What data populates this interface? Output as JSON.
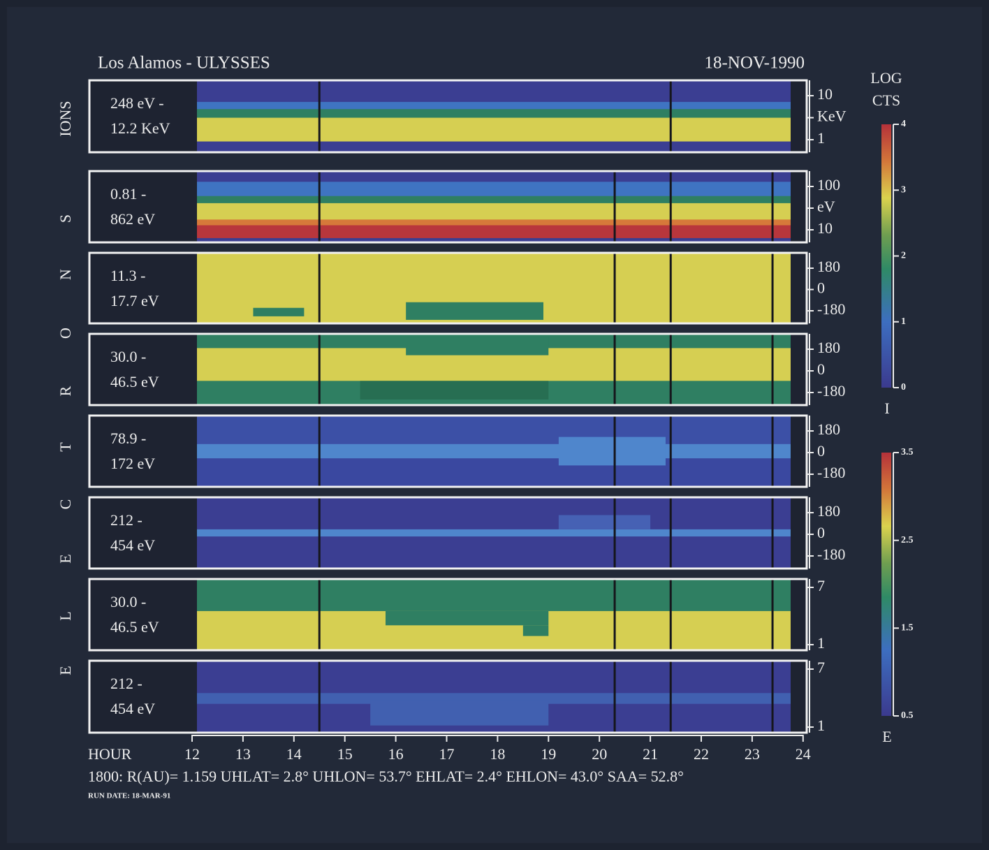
{
  "header": {
    "title": "Los Alamos - ULYSSES",
    "date": "18-NOV-1990"
  },
  "side_labels": {
    "ions": "IONS",
    "electrons_letters": [
      "S",
      "N",
      "O",
      "R",
      "T",
      "C",
      "E",
      "L",
      "E"
    ]
  },
  "panels": [
    {
      "label": [
        "248 eV  -",
        "12.2 KeV"
      ],
      "right_labels": [
        "10",
        "KeV",
        "1"
      ]
    },
    {
      "label": [
        "0.81  -",
        "862 eV"
      ],
      "right_labels": [
        "100",
        "eV",
        "10"
      ]
    },
    {
      "label": [
        "11.3  -",
        "17.7 eV"
      ],
      "right_labels": [
        "180",
        "0",
        "-180"
      ]
    },
    {
      "label": [
        "30.0  -",
        "46.5 eV"
      ],
      "right_labels": [
        "180",
        "0",
        "-180"
      ]
    },
    {
      "label": [
        "78.9  -",
        "172 eV"
      ],
      "right_labels": [
        "180",
        "0",
        "-180"
      ]
    },
    {
      "label": [
        "212  -",
        "454 eV"
      ],
      "right_labels": [
        "180",
        "0",
        "-180"
      ]
    },
    {
      "label": [
        "30.0  -",
        "46.5 eV"
      ],
      "right_labels": [
        "7",
        "1"
      ]
    },
    {
      "label": [
        "212  -",
        "454 eV"
      ],
      "right_labels": [
        "7",
        "1"
      ]
    }
  ],
  "x_axis": {
    "label": "HOUR",
    "ticks": [
      "12",
      "13",
      "14",
      "15",
      "16",
      "17",
      "18",
      "19",
      "20",
      "21",
      "22",
      "23",
      "24"
    ]
  },
  "colorbars": [
    {
      "title": [
        "LOG",
        "CTS"
      ],
      "ticks": [
        "4",
        "3",
        "2",
        "1",
        "0"
      ],
      "name": "I"
    },
    {
      "ticks": [
        "3.5",
        "2.5",
        "1.5",
        "0.5"
      ],
      "name": "E"
    }
  ],
  "footer": {
    "parameters": "1800: R(AU)= 1.159 UHLAT= 2.8° UHLON= 53.7° EHLAT= 2.4° EHLON= 43.0° SAA= 52.8°",
    "run_date": "RUN DATE: 18-MAR-91"
  }
}
